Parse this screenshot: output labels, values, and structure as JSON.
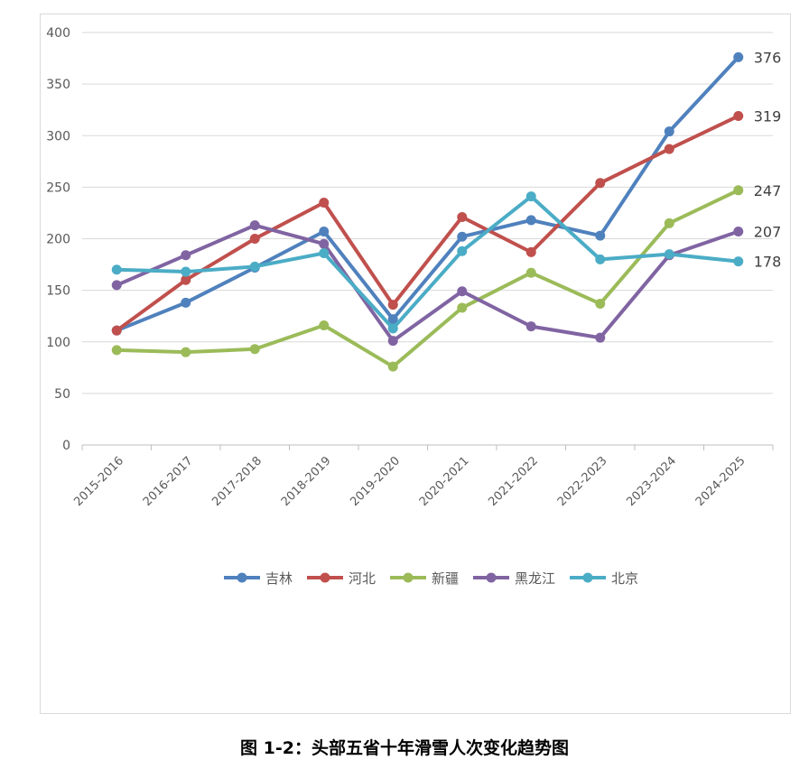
{
  "caption": "图 1-2：头部五省十年滑雪人次变化趋势图",
  "chart_data": {
    "type": "line",
    "categories": [
      "2015-2016",
      "2016-2017",
      "2017-2018",
      "2018-2019",
      "2019-2020",
      "2020-2021",
      "2021-2022",
      "2022-2023",
      "2023-2024",
      "2024-2025"
    ],
    "ylim": [
      0,
      400
    ],
    "yticks": [
      0,
      50,
      100,
      150,
      200,
      250,
      300,
      350,
      400
    ],
    "grid": true,
    "legend_position": "bottom",
    "series": [
      {
        "name": "吉林",
        "color": "#4f81bd",
        "values": [
          111,
          138,
          172,
          207,
          122,
          202,
          218,
          203,
          304,
          376
        ],
        "end_label": "376"
      },
      {
        "name": "河北",
        "color": "#c0504d",
        "values": [
          111,
          160,
          200,
          235,
          136,
          221,
          187,
          254,
          287,
          319
        ],
        "end_label": "319"
      },
      {
        "name": "新疆",
        "color": "#9bbb59",
        "values": [
          92,
          90,
          93,
          116,
          76,
          133,
          167,
          137,
          215,
          247
        ],
        "end_label": "247"
      },
      {
        "name": "黑龙江",
        "color": "#8064a2",
        "values": [
          155,
          184,
          213,
          195,
          101,
          149,
          115,
          104,
          184,
          207
        ],
        "end_label": "207"
      },
      {
        "name": "北京",
        "color": "#4bacc6",
        "values": [
          170,
          168,
          173,
          186,
          113,
          188,
          241,
          180,
          185,
          178
        ],
        "end_label": "178"
      }
    ]
  }
}
